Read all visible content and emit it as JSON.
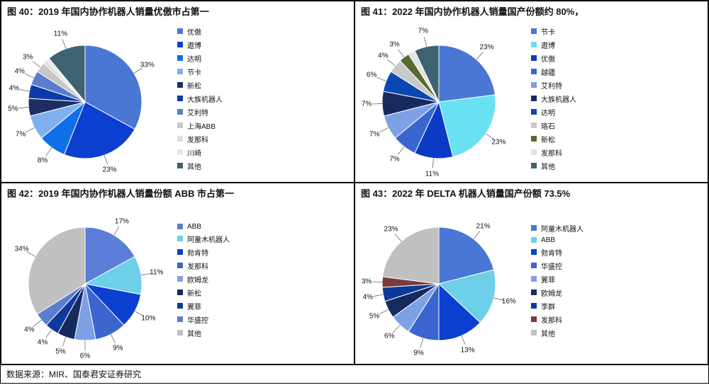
{
  "footnote": "数据来源：MIR、国泰君安证券研究",
  "charts": [
    {
      "title": "图 40：2019 年国内协作机器人销量优傲市占第一",
      "type": "pie",
      "series": [
        {
          "label": "优傲",
          "value": 33,
          "color": "#4a77d4"
        },
        {
          "label": "遨博",
          "value": 23,
          "color": "#0b3fd0"
        },
        {
          "label": "达明",
          "value": 8,
          "color": "#0f6fe8"
        },
        {
          "label": "节卡",
          "value": 7,
          "color": "#80b0ef"
        },
        {
          "label": "新松",
          "value": 5,
          "color": "#1d2e60"
        },
        {
          "label": "大族机器人",
          "value": 4,
          "color": "#0a3ba8"
        },
        {
          "label": "艾利特",
          "value": 4,
          "color": "#5b7dcf"
        },
        {
          "label": "上海ABB",
          "value": 3,
          "color": "#c7c7c7"
        },
        {
          "label": "发那科",
          "value": 1,
          "color": "#dddddd"
        },
        {
          "label": "川崎",
          "value": 1,
          "color": "#eaeaea"
        },
        {
          "label": "其他",
          "value": 11,
          "color": "#3d6370"
        }
      ],
      "label_fontsize": 10,
      "legend_fontsize": 10,
      "background": "#ffffff",
      "label_threshold": 3
    },
    {
      "title": "图 41：2022 年国内协作机器人销量国产份额约 80%，",
      "type": "pie",
      "series": [
        {
          "label": "节卡",
          "value": 23,
          "color": "#4a77d4"
        },
        {
          "label": "遨博",
          "value": 23,
          "color": "#69e1f3"
        },
        {
          "label": "优傲",
          "value": 11,
          "color": "#0b3bc4"
        },
        {
          "label": "越疆",
          "value": 7,
          "color": "#3a66cf"
        },
        {
          "label": "艾利特",
          "value": 7,
          "color": "#7ea1e6"
        },
        {
          "label": "大族机器人",
          "value": 7,
          "color": "#162a60"
        },
        {
          "label": "达明",
          "value": 6,
          "color": "#0b47b0"
        },
        {
          "label": "珞石",
          "value": 4,
          "color": "#c9c9c9"
        },
        {
          "label": "新松",
          "value": 3,
          "color": "#556b2f"
        },
        {
          "label": "发那科",
          "value": 2,
          "color": "#e2e2e2"
        },
        {
          "label": "其他",
          "value": 7,
          "color": "#3d6370"
        }
      ],
      "label_fontsize": 10,
      "legend_fontsize": 10,
      "background": "#ffffff",
      "label_threshold": 3
    },
    {
      "title": "图 42：2019 年国内协作机器人销量份额 ABB 市占第一",
      "type": "pie",
      "series": [
        {
          "label": "ABB",
          "value": 17,
          "color": "#5a7ed8"
        },
        {
          "label": "阿童木机器人",
          "value": 11,
          "color": "#6dd0e8"
        },
        {
          "label": "勃肯特",
          "value": 10,
          "color": "#0b3fd0"
        },
        {
          "label": "发那科",
          "value": 9,
          "color": "#3b65cf"
        },
        {
          "label": "欧姆龙",
          "value": 6,
          "color": "#7ea1e6"
        },
        {
          "label": "新松",
          "value": 5,
          "color": "#162a60"
        },
        {
          "label": "翼菲",
          "value": 4,
          "color": "#0d3a9a"
        },
        {
          "label": "华盛控",
          "value": 4,
          "color": "#5b7dcf"
        },
        {
          "label": "其他",
          "value": 34,
          "color": "#c0c0c0"
        }
      ],
      "label_fontsize": 10,
      "legend_fontsize": 10,
      "background": "#ffffff",
      "label_threshold": 3
    },
    {
      "title": "图 43：2022 年 DELTA 机器人销量国产份额 73.5%",
      "type": "pie",
      "series": [
        {
          "label": "阿童木机器人",
          "value": 21,
          "color": "#4a77d4"
        },
        {
          "label": "ABB",
          "value": 16,
          "color": "#6dd0e8"
        },
        {
          "label": "勃肯特",
          "value": 13,
          "color": "#0b3fd0"
        },
        {
          "label": "华盛控",
          "value": 9,
          "color": "#3b65cf"
        },
        {
          "label": "翼菲",
          "value": 6,
          "color": "#7ea1e6"
        },
        {
          "label": "欧姆龙",
          "value": 5,
          "color": "#162a60"
        },
        {
          "label": "李群",
          "value": 4,
          "color": "#0d3a9a"
        },
        {
          "label": "发那科",
          "value": 3,
          "color": "#7a3b3b"
        },
        {
          "label": "其他",
          "value": 23,
          "color": "#c0c0c0"
        }
      ],
      "label_fontsize": 10,
      "legend_fontsize": 10,
      "background": "#ffffff",
      "label_threshold": 3
    }
  ]
}
